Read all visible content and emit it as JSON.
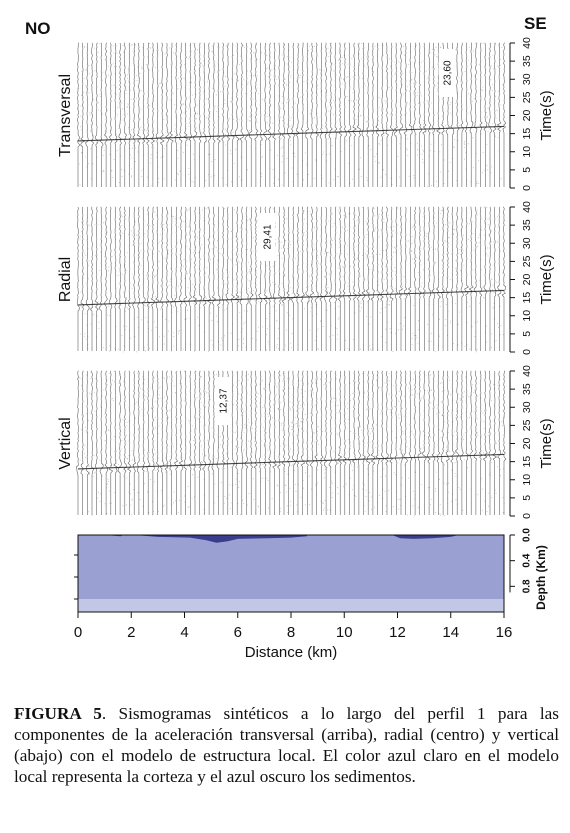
{
  "figure": {
    "corner_left": "NO",
    "corner_right": "SE",
    "panels": [
      {
        "label": "Transversal",
        "marker": "23,60",
        "marker_km": 13.85
      },
      {
        "label": "Radial",
        "marker": "29,41",
        "marker_km": 7.1
      },
      {
        "label": "Vertical",
        "marker": "12,37",
        "marker_km": 5.45
      }
    ],
    "time_axis_label": "Time(s)",
    "time_ticks": [
      "0",
      "5",
      "10",
      "15",
      "20",
      "25",
      "30",
      "35",
      "40"
    ],
    "depth_axis_label": "Depth (Km)",
    "depth_ticks": [
      "0.0",
      "0.4",
      "0.8"
    ],
    "distance_axis_label": "Distance (km)",
    "distance_ticks": [
      "0",
      "2",
      "4",
      "6",
      "8",
      "10",
      "12",
      "14",
      "16"
    ],
    "colors": {
      "crust": "#9aa0d2",
      "sediments": "#3a3d8c",
      "basement": "#c3c7e6",
      "traces": "#555555"
    }
  },
  "chart_data": [
    {
      "type": "line",
      "title": "Transversal",
      "xlabel": "",
      "ylabel": "Time(s)",
      "xlim": [
        0,
        16
      ],
      "ylim": [
        0,
        40
      ],
      "series": [
        {
          "x": [
            0,
            4,
            8,
            12,
            16
          ],
          "values": [
            13,
            14,
            15,
            16,
            17
          ]
        }
      ]
    },
    {
      "type": "line",
      "title": "Radial",
      "xlabel": "",
      "ylabel": "Time(s)",
      "xlim": [
        0,
        16
      ],
      "ylim": [
        0,
        40
      ],
      "series": [
        {
          "x": [
            0,
            4,
            8,
            12,
            16
          ],
          "values": [
            13,
            14,
            15,
            16,
            17
          ]
        }
      ]
    },
    {
      "type": "line",
      "title": "Vertical",
      "xlabel": "Distance (km)",
      "ylabel": "Time(s)",
      "xlim": [
        0,
        16
      ],
      "ylim": [
        0,
        40
      ],
      "series": [
        {
          "x": [
            0,
            4,
            8,
            12,
            16
          ],
          "values": [
            13,
            14,
            15,
            16,
            17
          ]
        }
      ]
    }
  ],
  "caption": {
    "label": "FIGURA 5",
    "text": ". Sismogramas sintéticos a lo largo del perfil 1 para las componentes de la aceleración transversal (arriba), radial (centro) y vertical (abajo) con el modelo de estructura local. El color azul claro en el modelo local representa la corteza y el azul oscuro los sedimentos."
  }
}
